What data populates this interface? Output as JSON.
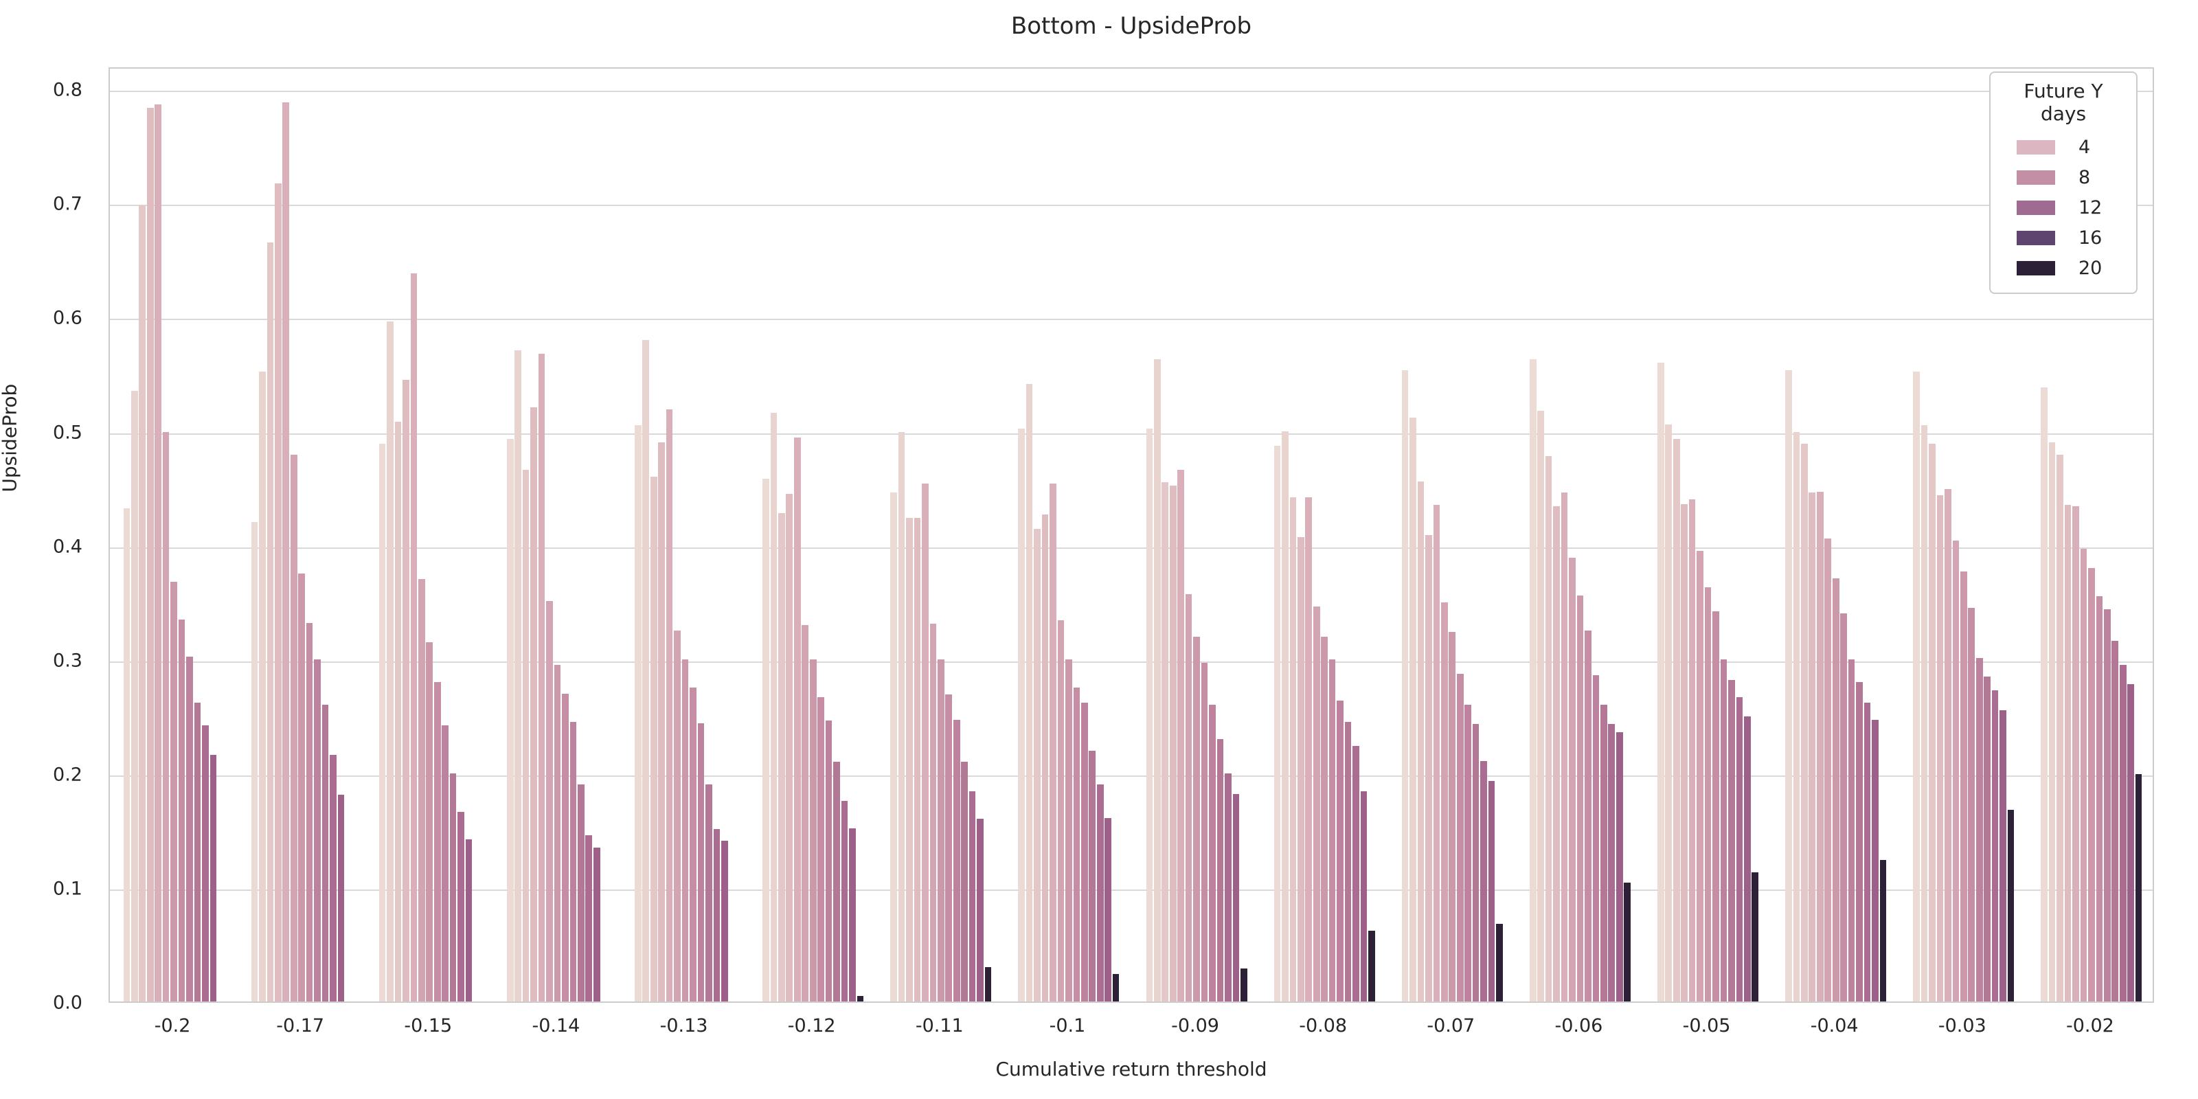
{
  "figure": {
    "title": "Bottom - UpsideProb",
    "xlabel": "Cumulative return threshold",
    "ylabel": "UpsideProb"
  },
  "legend": {
    "title": "Future Y days",
    "entries": [
      {
        "label": "4",
        "color": "#dcb6c1"
      },
      {
        "label": "8",
        "color": "#c38fa5"
      },
      {
        "label": "12",
        "color": "#a06b92"
      },
      {
        "label": "16",
        "color": "#5e4570"
      },
      {
        "label": "20",
        "color": "#2c2037"
      }
    ]
  },
  "chart_data": {
    "type": "bar",
    "title": "Bottom - UpsideProb",
    "xlabel": "Cumulative return threshold",
    "ylabel": "UpsideProb",
    "ylim": [
      0,
      0.82
    ],
    "yticks": [
      "0.0",
      "0.1",
      "0.2",
      "0.3",
      "0.4",
      "0.5",
      "0.6",
      "0.7",
      "0.8"
    ],
    "grid": "horizontal",
    "legend_position": "upper right",
    "legend_title": "Future Y days",
    "legend_entries": [
      4,
      8,
      12,
      16,
      20
    ],
    "hue_name": "Future Y days",
    "bars_per_group": 13,
    "bar_palette": [
      "#ecdbd5",
      "#e9d3cf",
      "#e4c8c8",
      "#dfbcc0",
      "#d9b0b9",
      "#d3a5b2",
      "#cc99ab",
      "#c58ea5",
      "#bd839e",
      "#b47897",
      "#aa6c90",
      "#9d6189",
      "#2d2138"
    ],
    "categories": [
      "-0.2",
      "-0.17",
      "-0.15",
      "-0.14",
      "-0.13",
      "-0.12",
      "-0.11",
      "-0.1",
      "-0.09",
      "-0.08",
      "-0.07",
      "-0.06",
      "-0.05",
      "-0.04",
      "-0.03",
      "-0.02"
    ],
    "values_note": "UpsideProb per group, 13 bars light-to-dark (last bar = darkest, 20-day); estimated from gridlines",
    "groups": [
      {
        "category": "-0.2",
        "values": [
          0.432,
          0.535,
          0.698,
          0.783,
          0.786,
          0.499,
          0.368,
          0.335,
          0.302,
          0.262,
          0.242,
          0.216,
          0
        ]
      },
      {
        "category": "-0.17",
        "values": [
          0.42,
          0.552,
          0.665,
          0.717,
          0.788,
          0.479,
          0.375,
          0.332,
          0.3,
          0.26,
          0.216,
          0.181,
          0
        ]
      },
      {
        "category": "-0.15",
        "values": [
          0.489,
          0.596,
          0.508,
          0.545,
          0.638,
          0.37,
          0.315,
          0.28,
          0.242,
          0.2,
          0.166,
          0.142,
          0
        ]
      },
      {
        "category": "-0.14",
        "values": [
          0.493,
          0.571,
          0.466,
          0.521,
          0.568,
          0.351,
          0.295,
          0.27,
          0.245,
          0.19,
          0.146,
          0.135,
          0
        ]
      },
      {
        "category": "-0.13",
        "values": [
          0.505,
          0.58,
          0.46,
          0.49,
          0.519,
          0.325,
          0.3,
          0.275,
          0.244,
          0.19,
          0.151,
          0.141,
          0
        ]
      },
      {
        "category": "-0.12",
        "values": [
          0.458,
          0.516,
          0.428,
          0.445,
          0.494,
          0.33,
          0.3,
          0.267,
          0.246,
          0.21,
          0.176,
          0.152,
          0.005
        ]
      },
      {
        "category": "-0.11",
        "values": [
          0.446,
          0.499,
          0.424,
          0.424,
          0.454,
          0.331,
          0.3,
          0.269,
          0.247,
          0.21,
          0.184,
          0.16,
          0.03
        ]
      },
      {
        "category": "-0.1",
        "values": [
          0.502,
          0.541,
          0.414,
          0.427,
          0.454,
          0.334,
          0.3,
          0.275,
          0.262,
          0.22,
          0.19,
          0.161,
          0.024
        ]
      },
      {
        "category": "-0.09",
        "values": [
          0.502,
          0.563,
          0.455,
          0.452,
          0.466,
          0.357,
          0.32,
          0.297,
          0.26,
          0.23,
          0.2,
          0.182,
          0.029
        ]
      },
      {
        "category": "-0.08",
        "values": [
          0.487,
          0.5,
          0.442,
          0.407,
          0.442,
          0.346,
          0.32,
          0.3,
          0.264,
          0.245,
          0.224,
          0.184,
          0.062
        ]
      },
      {
        "category": "-0.07",
        "values": [
          0.553,
          0.512,
          0.456,
          0.409,
          0.435,
          0.35,
          0.324,
          0.287,
          0.26,
          0.243,
          0.211,
          0.193,
          0.068
        ]
      },
      {
        "category": "-0.06",
        "values": [
          0.563,
          0.518,
          0.478,
          0.434,
          0.446,
          0.389,
          0.356,
          0.325,
          0.286,
          0.26,
          0.243,
          0.236,
          0.104
        ]
      },
      {
        "category": "-0.05",
        "values": [
          0.56,
          0.506,
          0.493,
          0.436,
          0.44,
          0.395,
          0.363,
          0.342,
          0.3,
          0.282,
          0.267,
          0.25,
          0.113
        ]
      },
      {
        "category": "-0.04",
        "values": [
          0.553,
          0.499,
          0.489,
          0.446,
          0.447,
          0.406,
          0.371,
          0.34,
          0.3,
          0.28,
          0.262,
          0.247,
          0.124
        ]
      },
      {
        "category": "-0.03",
        "values": [
          0.552,
          0.505,
          0.489,
          0.444,
          0.449,
          0.404,
          0.377,
          0.345,
          0.301,
          0.285,
          0.273,
          0.255,
          0.168
        ]
      },
      {
        "category": "-0.02",
        "values": [
          0.538,
          0.49,
          0.479,
          0.435,
          0.434,
          0.397,
          0.38,
          0.355,
          0.344,
          0.316,
          0.295,
          0.278,
          0.199
        ]
      }
    ]
  },
  "style": {
    "grid_color": "#d9d9d9",
    "spine_color": "#cccccc",
    "text_color": "#262626",
    "background": "#ffffff"
  }
}
